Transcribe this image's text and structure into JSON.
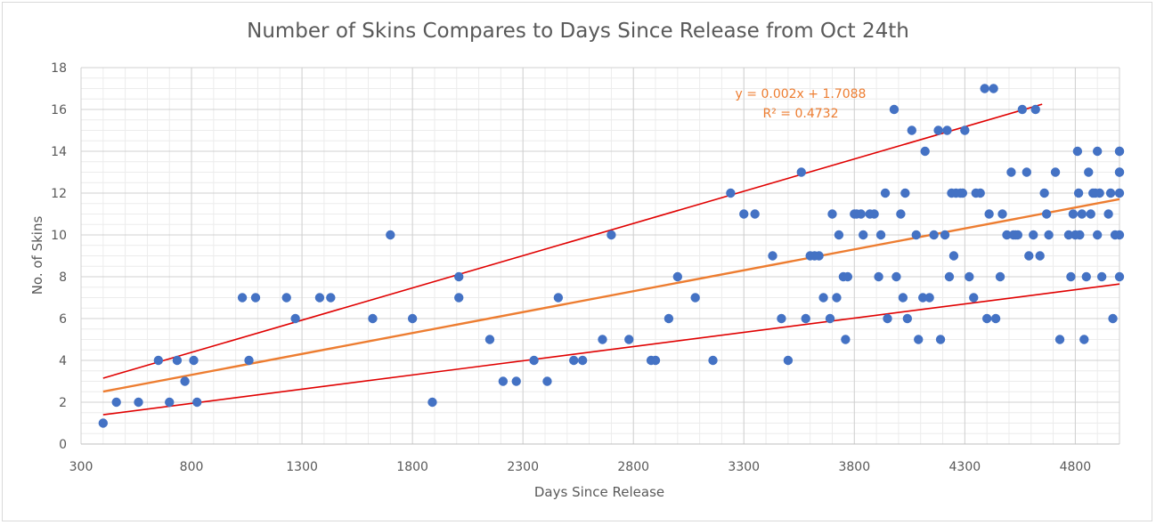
{
  "chart_data": {
    "type": "scatter",
    "title": "Number of Skins Compares to Days Since Release from Oct 24th",
    "xlabel": "Days Since Release",
    "ylabel": "No. of Skins",
    "xlim": [
      300,
      5000
    ],
    "ylim": [
      0,
      18
    ],
    "x_ticks": [
      300,
      800,
      1300,
      1800,
      2300,
      2800,
      3300,
      3800,
      4300,
      4800
    ],
    "y_ticks": [
      0,
      2,
      4,
      6,
      8,
      10,
      12,
      14,
      16,
      18
    ],
    "grid": "major and minor",
    "colors": {
      "points": "#4472c4",
      "trendline": "#ed7d31",
      "bounds": "#e00000",
      "equation": "#ed7d31",
      "text": "#595959",
      "grid_major": "#d0d0d0",
      "grid_minor": "#ececec"
    },
    "trendline": {
      "type": "linear",
      "slope": 0.002,
      "intercept": 1.7088,
      "x_range": [
        400,
        5000
      ],
      "equation_label": "y = 0.002x + 1.7088",
      "r2_label": "R² = 0.4732"
    },
    "bound_lines": [
      {
        "name": "upper",
        "x": [
          400,
          4650
        ],
        "y": [
          3.15,
          16.25
        ]
      },
      {
        "name": "lower",
        "x": [
          400,
          5000
        ],
        "y": [
          1.4,
          7.65
        ]
      }
    ],
    "series": [
      {
        "name": "No. of Skins",
        "points": [
          [
            400,
            1
          ],
          [
            460,
            2
          ],
          [
            560,
            2
          ],
          [
            650,
            4
          ],
          [
            700,
            2
          ],
          [
            735,
            4
          ],
          [
            770,
            3
          ],
          [
            810,
            4
          ],
          [
            825,
            2
          ],
          [
            1030,
            7
          ],
          [
            1060,
            4
          ],
          [
            1090,
            7
          ],
          [
            1230,
            7
          ],
          [
            1270,
            6
          ],
          [
            1380,
            7
          ],
          [
            1430,
            7
          ],
          [
            1620,
            6
          ],
          [
            1700,
            10
          ],
          [
            1800,
            6
          ],
          [
            1890,
            2
          ],
          [
            2010,
            8
          ],
          [
            2010,
            7
          ],
          [
            2150,
            5
          ],
          [
            2210,
            3
          ],
          [
            2270,
            3
          ],
          [
            2350,
            4
          ],
          [
            2410,
            3
          ],
          [
            2460,
            7
          ],
          [
            2530,
            4
          ],
          [
            2570,
            4
          ],
          [
            2660,
            5
          ],
          [
            2700,
            10
          ],
          [
            2780,
            5
          ],
          [
            2880,
            4
          ],
          [
            2900,
            4
          ],
          [
            2960,
            6
          ],
          [
            3000,
            8
          ],
          [
            3080,
            7
          ],
          [
            3160,
            4
          ],
          [
            3240,
            12
          ],
          [
            3300,
            11
          ],
          [
            3350,
            11
          ],
          [
            3430,
            9
          ],
          [
            3470,
            6
          ],
          [
            3500,
            4
          ],
          [
            3560,
            13
          ],
          [
            3580,
            6
          ],
          [
            3600,
            9
          ],
          [
            3620,
            9
          ],
          [
            3640,
            9
          ],
          [
            3660,
            7
          ],
          [
            3690,
            6
          ],
          [
            3700,
            11
          ],
          [
            3720,
            7
          ],
          [
            3730,
            10
          ],
          [
            3750,
            8
          ],
          [
            3760,
            5
          ],
          [
            3770,
            8
          ],
          [
            3800,
            11
          ],
          [
            3810,
            11
          ],
          [
            3830,
            11
          ],
          [
            3840,
            10
          ],
          [
            3870,
            11
          ],
          [
            3890,
            11
          ],
          [
            3910,
            8
          ],
          [
            3920,
            10
          ],
          [
            3940,
            12
          ],
          [
            3950,
            6
          ],
          [
            3980,
            16
          ],
          [
            3990,
            8
          ],
          [
            4010,
            11
          ],
          [
            4020,
            7
          ],
          [
            4030,
            12
          ],
          [
            4040,
            6
          ],
          [
            4060,
            15
          ],
          [
            4080,
            10
          ],
          [
            4090,
            5
          ],
          [
            4110,
            7
          ],
          [
            4120,
            14
          ],
          [
            4140,
            7
          ],
          [
            4160,
            10
          ],
          [
            4180,
            15
          ],
          [
            4190,
            5
          ],
          [
            4210,
            10
          ],
          [
            4220,
            15
          ],
          [
            4230,
            8
          ],
          [
            4240,
            12
          ],
          [
            4250,
            9
          ],
          [
            4260,
            12
          ],
          [
            4280,
            12
          ],
          [
            4290,
            12
          ],
          [
            4300,
            15
          ],
          [
            4320,
            8
          ],
          [
            4340,
            7
          ],
          [
            4350,
            12
          ],
          [
            4370,
            12
          ],
          [
            4390,
            17
          ],
          [
            4400,
            6
          ],
          [
            4410,
            11
          ],
          [
            4430,
            17
          ],
          [
            4440,
            6
          ],
          [
            4460,
            8
          ],
          [
            4470,
            11
          ],
          [
            4490,
            10
          ],
          [
            4510,
            13
          ],
          [
            4520,
            10
          ],
          [
            4530,
            10
          ],
          [
            4540,
            10
          ],
          [
            4560,
            16
          ],
          [
            4580,
            13
          ],
          [
            4590,
            9
          ],
          [
            4610,
            10
          ],
          [
            4620,
            16
          ],
          [
            4640,
            9
          ],
          [
            4660,
            12
          ],
          [
            4670,
            11
          ],
          [
            4680,
            10
          ],
          [
            4710,
            13
          ],
          [
            4730,
            5
          ],
          [
            4770,
            10
          ],
          [
            4780,
            8
          ],
          [
            4790,
            11
          ],
          [
            4800,
            10
          ],
          [
            4810,
            14
          ],
          [
            4815,
            12
          ],
          [
            4820,
            10
          ],
          [
            4830,
            11
          ],
          [
            4840,
            5
          ],
          [
            4850,
            8
          ],
          [
            4860,
            13
          ],
          [
            4870,
            11
          ],
          [
            4880,
            12
          ],
          [
            4890,
            12
          ],
          [
            4900,
            10
          ],
          [
            4900,
            14
          ],
          [
            4910,
            12
          ],
          [
            4920,
            8
          ],
          [
            4950,
            11
          ],
          [
            4960,
            12
          ],
          [
            4970,
            6
          ],
          [
            4980,
            10
          ],
          [
            5000,
            14
          ],
          [
            5000,
            13
          ],
          [
            5000,
            12
          ],
          [
            5000,
            10
          ],
          [
            5000,
            8
          ],
          [
            5000,
            14
          ],
          [
            5000,
            13
          ]
        ]
      }
    ]
  }
}
